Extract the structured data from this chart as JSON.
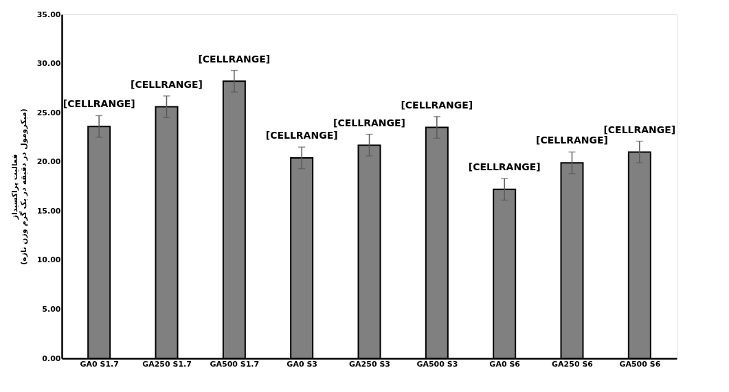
{
  "chart_data": {
    "type": "bar",
    "ylabel": "فعالیت پراکسیداز\n(میکرومول در دقیقه در یک گرم وزن تازه)",
    "categories": [
      "GA0 S1.7",
      "GA250 S1.7",
      "GA500 S1.7",
      "GA0 S3",
      "GA250 S3",
      "GA500 S3",
      "GA0 S6",
      "GA250 S6",
      "GA500 S6"
    ],
    "values": [
      23.6,
      25.6,
      28.2,
      20.4,
      21.7,
      23.5,
      17.2,
      19.9,
      21.0
    ],
    "errors": [
      1.1,
      1.1,
      1.1,
      1.1,
      1.1,
      1.1,
      1.1,
      1.1,
      1.1
    ],
    "value_labels": [
      "[CELLRANGE]",
      "[CELLRANGE]",
      "[CELLRANGE]",
      "[CELLRANGE]",
      "[CELLRANGE]",
      "[CELLRANGE]",
      "[CELLRANGE]",
      "[CELLRANGE]",
      "[CELLRANGE]"
    ],
    "color": "#808080",
    "ylim": [
      0,
      35
    ],
    "yticks": [
      {
        "value": 0,
        "label": "0.00"
      },
      {
        "value": 5,
        "label": "5.00"
      },
      {
        "value": 10,
        "label": "10.00"
      },
      {
        "value": 15,
        "label": "15.00"
      },
      {
        "value": 20,
        "label": "20.00"
      },
      {
        "value": 25,
        "label": "25.00"
      },
      {
        "value": 30,
        "label": "30.00"
      },
      {
        "value": 35,
        "label": "35.00"
      }
    ],
    "grid": false
  }
}
